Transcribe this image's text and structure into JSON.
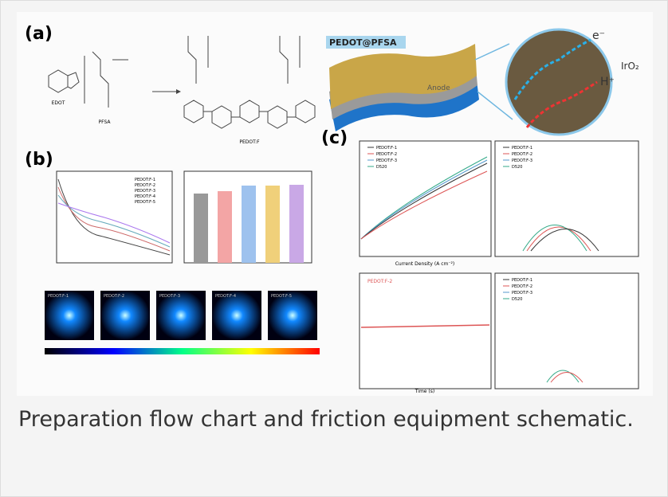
{
  "figure": {
    "panel_a": {
      "label": "(a)",
      "monomer": "EDOT",
      "polymer": "PFSA",
      "product": "PEDOT:F",
      "composite": "PEDOT@PFSA",
      "electrode": "Anode",
      "electron": "e⁻",
      "proton": "H⁺",
      "catalyst": "IrO₂"
    },
    "panel_b": {
      "label": "(b)",
      "legend": [
        "PEDOT:F-1",
        "PEDOT:F-2",
        "PEDOT:F-3",
        "PEDOT:F-4",
        "PEDOT:F-5"
      ]
    },
    "panel_c": {
      "label": "(c)",
      "legend": [
        "PEDOT:F-1",
        "PEDOT:F-2",
        "PEDOT:F-3",
        "D520"
      ],
      "stability_legend": "PEDOT:F-2",
      "polarization_x_title": "Current Density (A cm⁻²)",
      "stability_x_title": "Time (s)"
    }
  },
  "caption": "Preparation flow chart and friction equipment schematic."
}
